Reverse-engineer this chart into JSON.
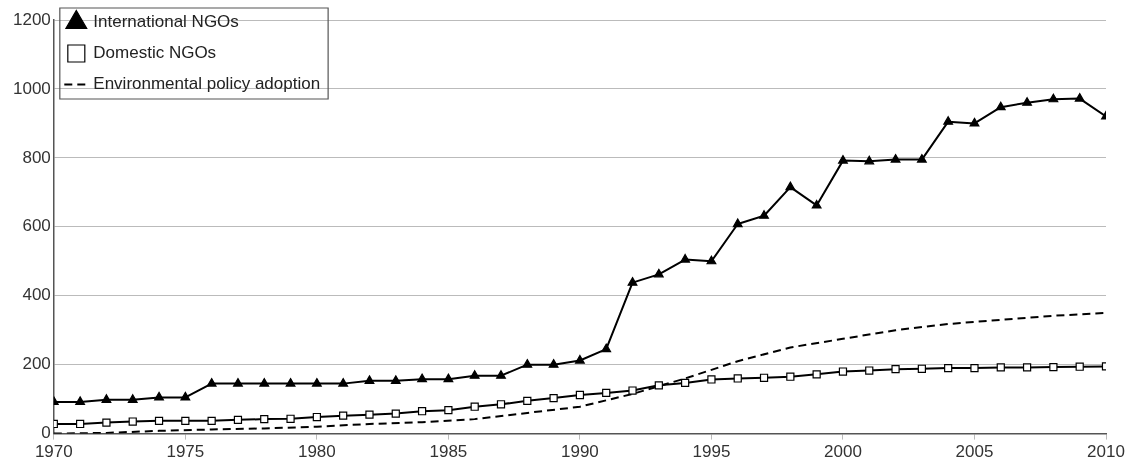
{
  "chart_data": {
    "type": "line",
    "x": [
      1970,
      1971,
      1972,
      1973,
      1974,
      1975,
      1976,
      1977,
      1978,
      1979,
      1980,
      1981,
      1982,
      1983,
      1984,
      1985,
      1986,
      1987,
      1988,
      1989,
      1990,
      1991,
      1992,
      1993,
      1994,
      1995,
      1996,
      1997,
      1998,
      1999,
      2000,
      2001,
      2002,
      2003,
      2004,
      2005,
      2006,
      2007,
      2008,
      2009,
      2010
    ],
    "xlim": [
      1970,
      2010
    ],
    "xticks": [
      1970,
      1975,
      1980,
      1985,
      1990,
      1995,
      2000,
      2005,
      2010
    ],
    "ylim": [
      0,
      1200
    ],
    "yticks": [
      0,
      200,
      400,
      600,
      800,
      1000,
      1200
    ],
    "grid": "y",
    "legend": "top left",
    "series": [
      {
        "name": "International NGOs",
        "color": "#000000",
        "marker": "triangle",
        "line_style": "solid",
        "values": [
          92,
          92,
          98,
          98,
          105,
          105,
          145,
          145,
          145,
          145,
          145,
          145,
          153,
          153,
          158,
          158,
          168,
          168,
          200,
          200,
          212,
          245,
          438,
          462,
          505,
          500,
          608,
          632,
          715,
          662,
          792,
          790,
          795,
          795,
          905,
          900,
          947,
          960,
          970,
          972,
          920
        ]
      },
      {
        "name": "Domestic NGOs",
        "color": "#000000",
        "marker": "square",
        "line_style": "solid",
        "values": [
          28,
          28,
          32,
          35,
          37,
          37,
          37,
          40,
          42,
          43,
          48,
          52,
          55,
          58,
          65,
          68,
          78,
          85,
          95,
          103,
          112,
          118,
          125,
          140,
          147,
          157,
          160,
          162,
          165,
          172,
          180,
          183,
          187,
          188,
          190,
          190,
          192,
          192,
          193,
          194,
          195
        ]
      },
      {
        "name": "Environmental policy adoption",
        "color": "#000000",
        "marker": "none",
        "line_style": "dashed",
        "x": [
          1970,
          1972,
          1974,
          1976,
          1978,
          1980,
          1982,
          1984,
          1986,
          1988,
          1990,
          1992,
          1994,
          1995,
          1996,
          1998,
          2000,
          2002,
          2004,
          2006,
          2008,
          2010
        ],
        "values": [
          0,
          2,
          8,
          12,
          15,
          20,
          28,
          33,
          42,
          60,
          78,
          115,
          160,
          185,
          210,
          250,
          275,
          300,
          318,
          330,
          342,
          350
        ]
      }
    ]
  }
}
